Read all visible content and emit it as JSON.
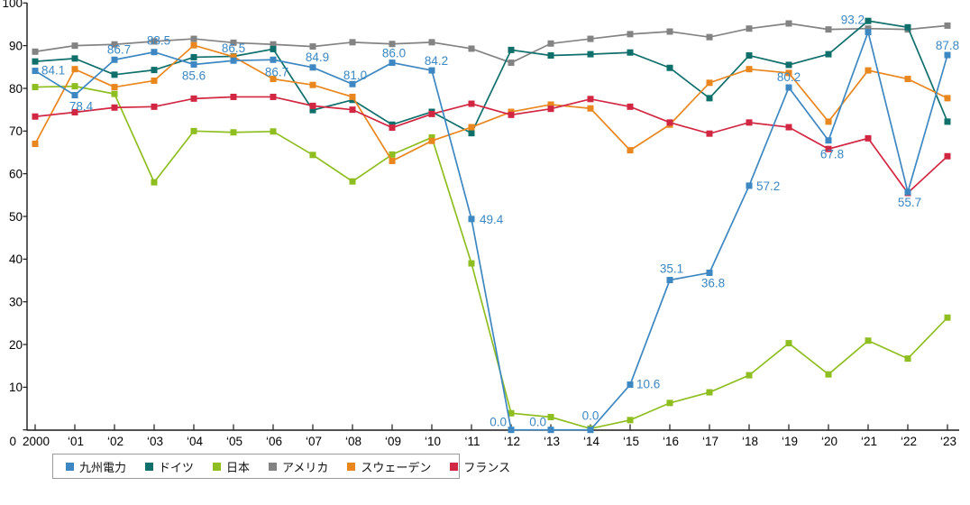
{
  "chart_data": {
    "type": "line",
    "title": "",
    "xlabel": "",
    "ylabel": "",
    "ylim": [
      0,
      100
    ],
    "y_ticks": [
      0,
      10,
      20,
      30,
      40,
      50,
      60,
      70,
      80,
      90,
      100
    ],
    "grid": false,
    "legend_position": "bottom-left",
    "x_labels": [
      "2000",
      "‘01",
      "‘02",
      "‘03",
      "‘04",
      "‘05",
      "‘06",
      "‘07",
      "‘08",
      "‘09",
      "‘10",
      "‘11",
      "‘12",
      "‘13",
      "‘14",
      "‘15",
      "‘16",
      "‘17",
      "‘18",
      "‘19",
      "‘20",
      "‘21",
      "‘22",
      "‘23"
    ],
    "origin_label": "0",
    "series": [
      {
        "name": "九州電力",
        "key": "kyushu-denryoku",
        "color": "#3d87c2",
        "values": [
          84.1,
          78.4,
          86.7,
          88.5,
          85.6,
          86.5,
          86.7,
          84.9,
          81.0,
          86.0,
          84.2,
          49.4,
          0.0,
          0.0,
          0.0,
          10.6,
          35.1,
          36.8,
          57.2,
          80.2,
          67.8,
          93.2,
          55.7,
          87.8
        ],
        "data_labels": true
      },
      {
        "name": "ドイツ",
        "key": "germany",
        "color": "#0e6f6b",
        "values": [
          86.3,
          87.0,
          83.2,
          84.3,
          87.3,
          87.5,
          89.2,
          74.9,
          77.3,
          71.5,
          74.5,
          69.5,
          89.0,
          87.7,
          88.0,
          88.4,
          84.8,
          77.7,
          87.7,
          85.5,
          88.0,
          95.8,
          94.3,
          72.2
        ],
        "data_labels": false
      },
      {
        "name": "日本",
        "key": "japan",
        "color": "#8fbe21",
        "values": [
          80.3,
          80.5,
          78.7,
          58.0,
          70.0,
          69.7,
          69.9,
          64.4,
          58.2,
          64.5,
          68.5,
          39.0,
          3.9,
          3.0,
          0.3,
          2.3,
          6.3,
          8.8,
          12.8,
          20.3,
          13.0,
          20.9,
          16.7,
          26.3
        ],
        "data_labels": false
      },
      {
        "name": "アメリカ",
        "key": "usa",
        "color": "#838383",
        "values": [
          88.6,
          90.0,
          90.3,
          91.0,
          91.6,
          90.7,
          90.3,
          89.8,
          90.8,
          90.4,
          90.8,
          89.3,
          86.0,
          90.5,
          91.6,
          92.7,
          93.3,
          92.0,
          94.0,
          95.2,
          93.8,
          94.0,
          93.8,
          94.7
        ],
        "data_labels": false
      },
      {
        "name": "スウェーデン",
        "key": "sweden",
        "color": "#e9861d",
        "values": [
          67.0,
          84.5,
          80.3,
          81.8,
          90.1,
          87.4,
          82.2,
          80.8,
          78.0,
          63.0,
          67.7,
          70.9,
          74.5,
          76.2,
          75.3,
          65.5,
          71.5,
          81.3,
          84.5,
          83.6,
          72.2,
          84.2,
          82.2,
          77.7
        ],
        "data_labels": false
      },
      {
        "name": "フランス",
        "key": "france",
        "color": "#d22742",
        "values": [
          73.4,
          74.4,
          75.5,
          75.7,
          77.6,
          78.0,
          78.0,
          75.9,
          75.0,
          70.8,
          74.0,
          76.4,
          73.8,
          75.2,
          77.5,
          75.7,
          72.0,
          69.4,
          72.0,
          70.9,
          65.8,
          68.3,
          55.5,
          64.1
        ],
        "data_labels": false
      }
    ],
    "data_label_format": "one-decimal",
    "data_label_color": "#3d87c2",
    "axis_color": "#1a1a1a"
  }
}
